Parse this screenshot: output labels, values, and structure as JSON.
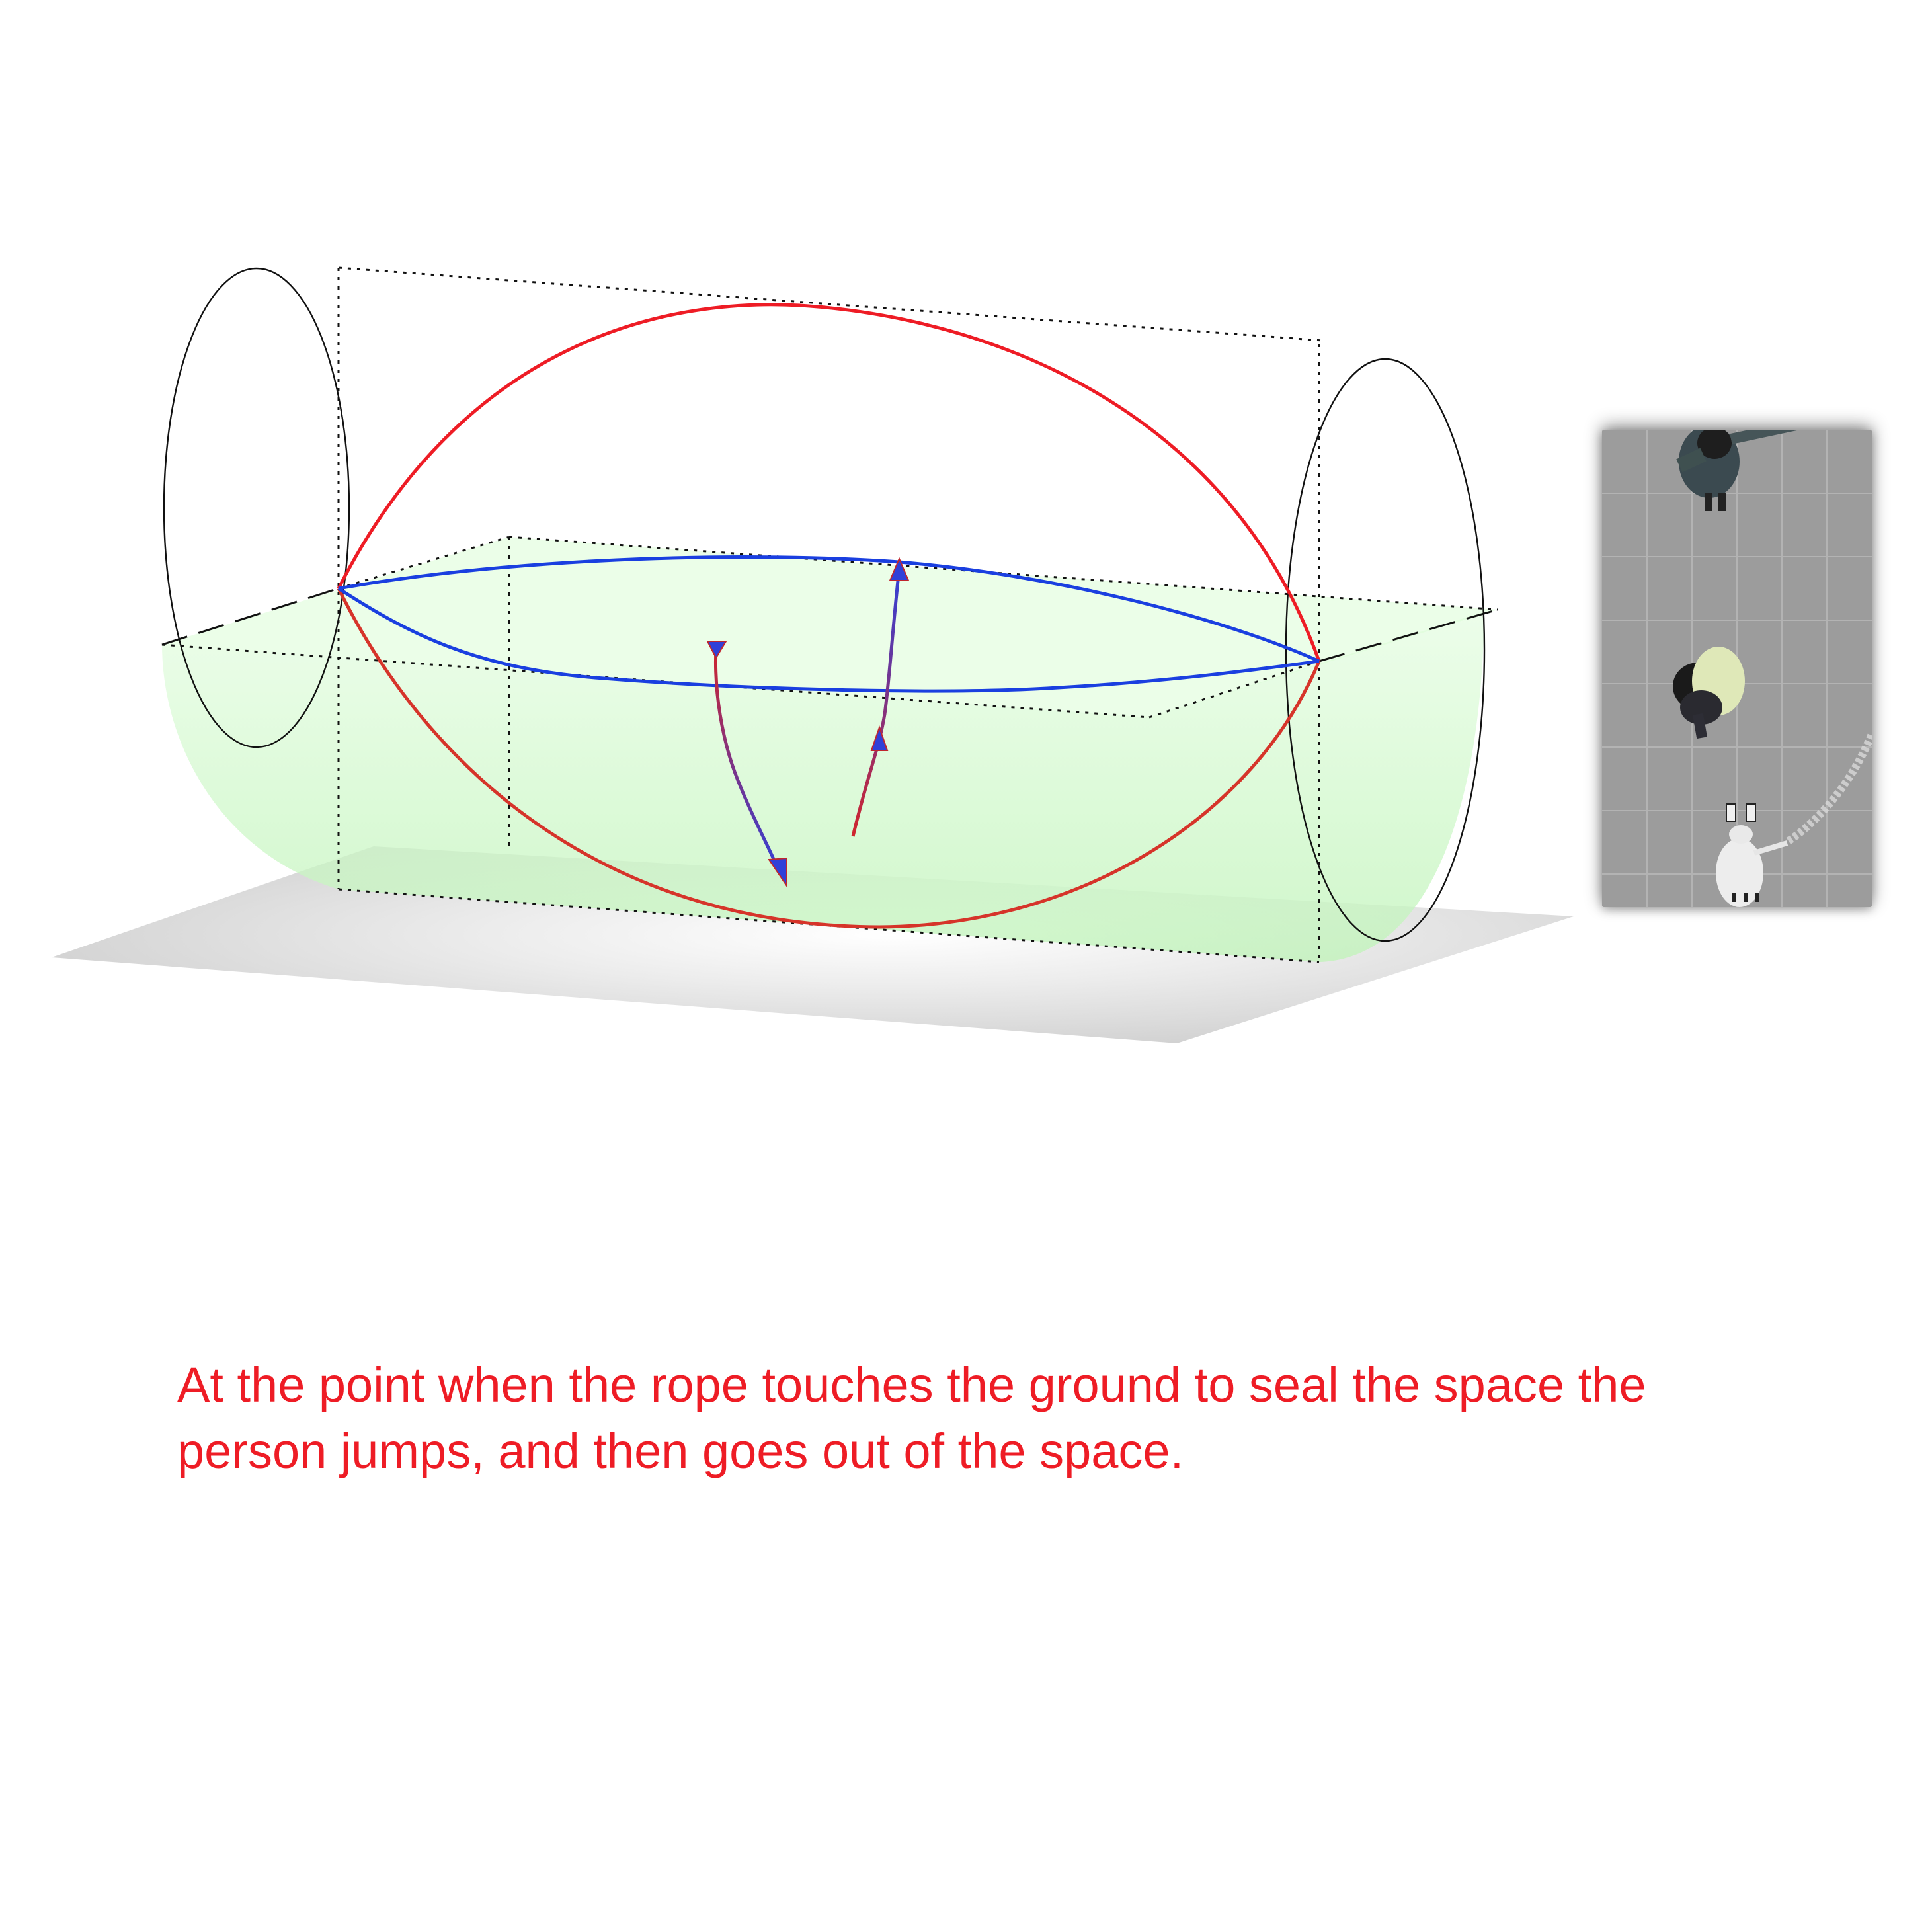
{
  "caption": {
    "text": "At the point when the rope touches the ground to seal the space the person jumps, and then goes out of the space.",
    "color": "#ee1c25"
  },
  "diagram": {
    "colors": {
      "rope_up": "#ee1c25",
      "rope_level": "#1a3fe0",
      "rope_down": "#d6342a",
      "jump_arrow_start": "#d0252d",
      "jump_arrow_end": "#3040d8",
      "rope_space_fill": "#b8f7b0",
      "ground_shadow": "#c8c8c8",
      "outline": "#111111"
    }
  },
  "photo": {
    "colors": {
      "floor": "#9c9c9c",
      "tile_lines": "#b3b3b3"
    }
  }
}
